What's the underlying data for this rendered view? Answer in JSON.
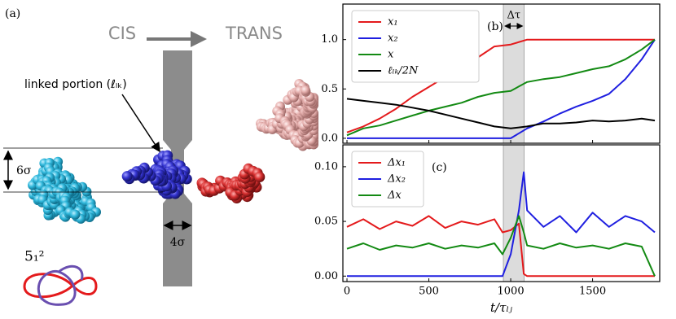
{
  "illustration": {
    "panel_label": "(a)",
    "left_side": "CIS",
    "right_side": "TRANS",
    "linked_label": "linked portion (ℓₗₖ)",
    "height_label": "6σ",
    "width_label": "4σ",
    "knot_label": "5₁²"
  },
  "chart_data": [
    {
      "type": "line",
      "panel_label": "(b)",
      "x": [
        0,
        100,
        200,
        300,
        400,
        500,
        600,
        700,
        800,
        900,
        1000,
        1100,
        1200,
        1300,
        1400,
        1500,
        1600,
        1700,
        1800,
        1880
      ],
      "series": [
        {
          "name": "x₁",
          "color": "#e41a1c",
          "values": [
            0.06,
            0.12,
            0.2,
            0.3,
            0.42,
            0.52,
            0.62,
            0.72,
            0.82,
            0.93,
            0.95,
            1.0,
            1.0,
            1.0,
            1.0,
            1.0,
            1.0,
            1.0,
            1.0,
            1.0
          ]
        },
        {
          "name": "x₂",
          "color": "#1f1fe0",
          "values": [
            0,
            0,
            0,
            0,
            0,
            0,
            0,
            0,
            0,
            0,
            0,
            0.1,
            0.17,
            0.25,
            0.32,
            0.38,
            0.45,
            0.6,
            0.8,
            1.0
          ]
        },
        {
          "name": "x",
          "color": "#138a13",
          "values": [
            0.03,
            0.1,
            0.13,
            0.18,
            0.23,
            0.28,
            0.32,
            0.36,
            0.42,
            0.46,
            0.48,
            0.57,
            0.6,
            0.62,
            0.66,
            0.7,
            0.73,
            0.8,
            0.9,
            1.0
          ]
        },
        {
          "name": "ℓₗₖ/2N",
          "color": "#000000",
          "values": [
            0.4,
            0.38,
            0.36,
            0.34,
            0.31,
            0.28,
            0.24,
            0.2,
            0.16,
            0.12,
            0.1,
            0.12,
            0.15,
            0.15,
            0.16,
            0.18,
            0.17,
            0.18,
            0.2,
            0.18
          ]
        }
      ],
      "xlim": [
        -25,
        1910
      ],
      "xticks": [
        0,
        500,
        1000,
        1500
      ],
      "show_xtick_labels": false,
      "ylim": [
        -0.05,
        1.36
      ],
      "yticks": [
        {
          "value": 0,
          "label": "0.0"
        },
        {
          "value": 0.5,
          "label": "0.5"
        },
        {
          "value": 1,
          "label": "1.0"
        }
      ],
      "highlight": [
        955,
        1082
      ],
      "highlight_label": "Δτ",
      "legend": "upper left"
    },
    {
      "type": "line",
      "panel_label": "(c)",
      "x_label": "t/τₗⱼ",
      "x": [
        0,
        100,
        200,
        300,
        400,
        500,
        600,
        700,
        800,
        900,
        950,
        1000,
        1050,
        1080,
        1100,
        1200,
        1300,
        1400,
        1500,
        1600,
        1700,
        1800,
        1880
      ],
      "series": [
        {
          "name": "Δx₁",
          "color": "#e41a1c",
          "values": [
            0.045,
            0.052,
            0.043,
            0.05,
            0.046,
            0.055,
            0.044,
            0.05,
            0.047,
            0.052,
            0.04,
            0.042,
            0.048,
            0.002,
            0,
            0,
            0,
            0,
            0,
            0,
            0,
            0,
            0
          ]
        },
        {
          "name": "Δx₂",
          "color": "#1f1fe0",
          "values": [
            0,
            0,
            0,
            0,
            0,
            0,
            0,
            0,
            0,
            0,
            0,
            0.02,
            0.06,
            0.095,
            0.06,
            0.045,
            0.055,
            0.04,
            0.058,
            0.045,
            0.055,
            0.05,
            0.04
          ]
        },
        {
          "name": "Δx",
          "color": "#138a13",
          "values": [
            0.025,
            0.03,
            0.024,
            0.028,
            0.026,
            0.03,
            0.025,
            0.028,
            0.026,
            0.03,
            0.02,
            0.035,
            0.055,
            0.04,
            0.028,
            0.025,
            0.03,
            0.026,
            0.028,
            0.025,
            0.03,
            0.027,
            0
          ]
        }
      ],
      "xlim": [
        -25,
        1910
      ],
      "xticks": [
        0,
        500,
        1000,
        1500
      ],
      "show_xtick_labels": true,
      "ylim": [
        -0.005,
        0.12
      ],
      "yticks": [
        {
          "value": 0,
          "label": "0.00"
        },
        {
          "value": 0.05,
          "label": "0.05"
        },
        {
          "value": 0.1,
          "label": "0.10"
        }
      ],
      "highlight": [
        955,
        1082
      ],
      "legend": "upper left"
    }
  ]
}
